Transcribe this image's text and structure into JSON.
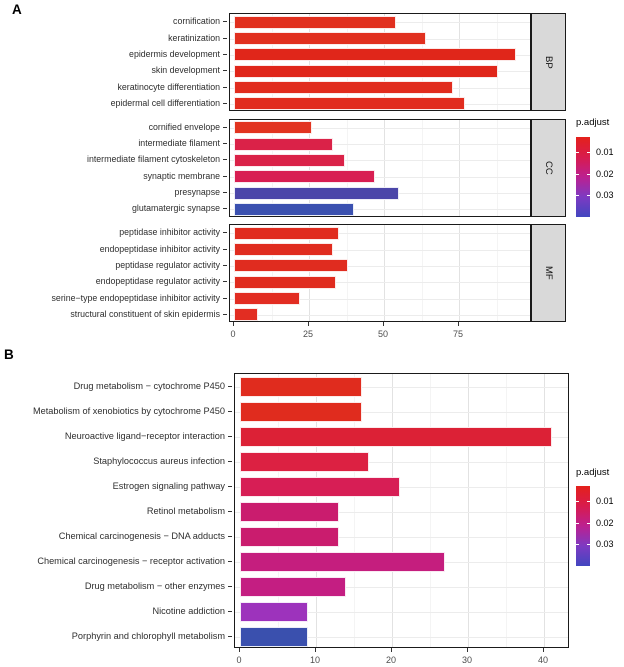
{
  "chart_data": [
    {
      "type": "bar",
      "panel_label": "A",
      "orientation": "horizontal",
      "xlabel": "",
      "x_ticks": [
        0,
        25,
        50,
        75
      ],
      "xlim": [
        0,
        99
      ],
      "grid": true,
      "legend": {
        "title": "p.adjust",
        "position": "right",
        "style": "continuous-gradient",
        "ticks": [
          "0.01",
          "0.02",
          "0.03"
        ],
        "colors_top_to_bottom": [
          "#e4211b",
          "#d81b4d",
          "#bc2090",
          "#7d3ac2",
          "#4146c0"
        ]
      },
      "facets": [
        {
          "name": "BP",
          "categories": [
            "cornification",
            "keratinization",
            "epidermis development",
            "skin development",
            "keratinocyte differentiation",
            "epidermal cell differentiation"
          ],
          "values": [
            54,
            64,
            94,
            88,
            73,
            77
          ],
          "colors": [
            "#e1301f",
            "#e1301f",
            "#e0261a",
            "#e0261a",
            "#e12c1e",
            "#e12c1e"
          ]
        },
        {
          "name": "CC",
          "categories": [
            "cornified envelope",
            "intermediate filament",
            "intermediate filament cytoskeleton",
            "synaptic membrane",
            "presynapse",
            "glutamatergic synapse"
          ],
          "values": [
            26,
            33,
            37,
            47,
            55,
            40
          ],
          "colors": [
            "#e23420",
            "#da2248",
            "#da2248",
            "#d81e52",
            "#4b46a9",
            "#3b51b0"
          ]
        },
        {
          "name": "MF",
          "categories": [
            "peptidase inhibitor activity",
            "endopeptidase inhibitor activity",
            "peptidase regulator activity",
            "endopeptidase regulator activity",
            "serine−type endopeptidase inhibitor activity",
            "structural constituent of skin epidermis"
          ],
          "values": [
            35,
            33,
            38,
            34,
            22,
            8
          ],
          "colors": [
            "#e02c1f",
            "#e02c1f",
            "#e02c1f",
            "#e02c1f",
            "#e22d22",
            "#e22d22"
          ]
        }
      ]
    },
    {
      "type": "bar",
      "panel_label": "B",
      "orientation": "horizontal",
      "xlabel": "",
      "x_ticks": [
        0,
        10,
        20,
        30,
        40
      ],
      "xlim": [
        0,
        43.5
      ],
      "grid": true,
      "legend": {
        "title": "p.adjust",
        "position": "right",
        "style": "continuous-gradient",
        "ticks": [
          "0.01",
          "0.02",
          "0.03"
        ],
        "colors_top_to_bottom": [
          "#e4211b",
          "#d81b4d",
          "#bc2090",
          "#7d3ac2",
          "#4146c0"
        ]
      },
      "facets": [
        {
          "name": null,
          "categories": [
            "Drug metabolism − cytochrome P450",
            "Metabolism of xenobiotics by cytochrome P450",
            "Neuroactive ligand−receptor interaction",
            "Staphylococcus aureus infection",
            "Estrogen signaling pathway",
            "Retinol metabolism",
            "Chemical carcinogenesis − DNA adducts",
            "Chemical carcinogenesis − receptor activation",
            "Drug metabolism − other enzymes",
            "Nicotine addiction",
            "Porphyrin and chlorophyll metabolism"
          ],
          "values": [
            16,
            16,
            41,
            17,
            21,
            13,
            13,
            27,
            14,
            9,
            9
          ],
          "colors": [
            "#e02c1e",
            "#e02c1e",
            "#dc2136",
            "#dc2142",
            "#d71e55",
            "#ca1c6e",
            "#ca1c6e",
            "#c51e7e",
            "#c41e82",
            "#9d33bc",
            "#3a50ae"
          ]
        }
      ]
    }
  ]
}
